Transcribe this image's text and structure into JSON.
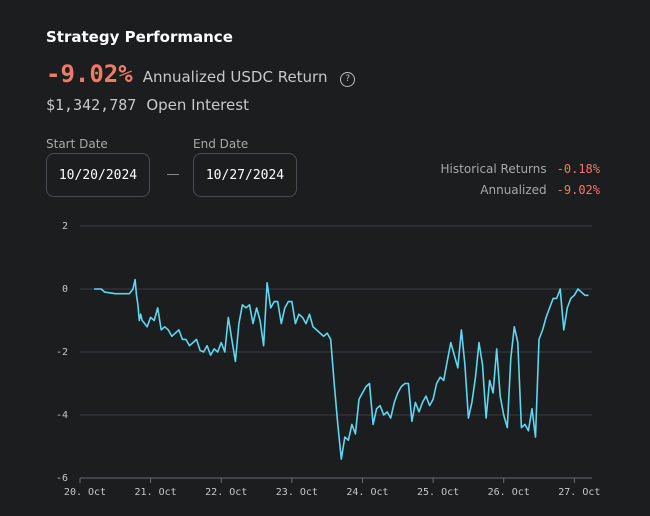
{
  "header": {
    "title": "Strategy Performance",
    "annualized_return": "-9.02%",
    "annualized_return_label": "Annualized USDC Return",
    "help_glyph": "?",
    "open_interest": "$1,342,787",
    "open_interest_label": "Open Interest"
  },
  "date_range": {
    "start_label": "Start Date",
    "start_value": "10/20/2024",
    "end_label": "End Date",
    "end_value": "10/27/2024"
  },
  "summary": {
    "historical_label": "Historical Returns",
    "historical_value": "-0.18%",
    "annualized_label": "Annualized",
    "annualized_value": "-9.02%"
  },
  "colors": {
    "line": "#5fd6f2",
    "negative": "#f07a69",
    "grid": "#3a3d40"
  },
  "chart_data": {
    "type": "line",
    "title": "",
    "xlabel": "",
    "ylabel": "",
    "ylim": [
      -6,
      2
    ],
    "xlim": [
      0,
      7.25
    ],
    "yticks": [
      2,
      0,
      -2,
      -4,
      -6
    ],
    "xticks": [
      {
        "x": 0,
        "label": "20. Oct"
      },
      {
        "x": 1,
        "label": "21. Oct"
      },
      {
        "x": 2,
        "label": "22. Oct"
      },
      {
        "x": 3,
        "label": "23. Oct"
      },
      {
        "x": 4,
        "label": "24. Oct"
      },
      {
        "x": 5,
        "label": "25. Oct"
      },
      {
        "x": 6,
        "label": "26. Oct"
      },
      {
        "x": 7,
        "label": "27. Oct"
      }
    ],
    "grid": true,
    "series": [
      {
        "x": [
          0.2,
          0.3,
          0.35,
          0.5,
          0.6,
          0.7,
          0.75,
          0.78,
          0.8,
          0.82,
          0.84,
          0.86,
          0.88,
          0.9,
          0.95,
          1.0,
          1.05,
          1.1,
          1.15,
          1.2,
          1.25,
          1.3,
          1.35,
          1.4,
          1.45,
          1.5,
          1.55,
          1.6,
          1.65,
          1.7,
          1.75,
          1.8,
          1.85,
          1.9,
          1.95,
          2.0,
          2.05,
          2.1,
          2.15,
          2.2,
          2.25,
          2.3,
          2.35,
          2.4,
          2.45,
          2.5,
          2.55,
          2.6,
          2.65,
          2.7,
          2.75,
          2.8,
          2.85,
          2.9,
          2.95,
          3.0,
          3.05,
          3.1,
          3.15,
          3.2,
          3.25,
          3.3,
          3.35,
          3.4,
          3.45,
          3.5,
          3.55,
          3.6,
          3.65,
          3.7,
          3.75,
          3.8,
          3.85,
          3.9,
          3.95,
          4.0,
          4.05,
          4.1,
          4.15,
          4.2,
          4.25,
          4.3,
          4.35,
          4.4,
          4.45,
          4.5,
          4.55,
          4.6,
          4.65,
          4.7,
          4.75,
          4.8,
          4.85,
          4.9,
          4.95,
          5.0,
          5.05,
          5.1,
          5.15,
          5.2,
          5.25,
          5.3,
          5.35,
          5.4,
          5.45,
          5.5,
          5.55,
          5.6,
          5.65,
          5.7,
          5.75,
          5.8,
          5.85,
          5.9,
          5.95,
          6.0,
          6.05,
          6.1,
          6.15,
          6.2,
          6.25,
          6.3,
          6.35,
          6.4,
          6.45,
          6.5,
          6.55,
          6.6,
          6.65,
          6.7,
          6.75,
          6.8,
          6.85,
          6.9,
          6.95,
          7.0,
          7.05,
          7.1,
          7.15,
          7.2
        ],
        "y": [
          0.0,
          0.0,
          -0.1,
          -0.15,
          -0.15,
          -0.15,
          0.0,
          0.3,
          -0.2,
          -0.5,
          -1.0,
          -0.8,
          -1.0,
          -1.05,
          -1.2,
          -0.9,
          -1.0,
          -0.6,
          -1.3,
          -1.2,
          -1.3,
          -1.5,
          -1.4,
          -1.3,
          -1.6,
          -1.6,
          -1.8,
          -1.7,
          -1.6,
          -1.95,
          -2.0,
          -1.8,
          -2.1,
          -1.9,
          -2.0,
          -1.7,
          -2.0,
          -0.9,
          -1.6,
          -2.3,
          -1.1,
          -0.5,
          -0.6,
          -0.5,
          -1.1,
          -0.6,
          -1.0,
          -1.8,
          0.2,
          -0.6,
          -0.4,
          -0.4,
          -1.1,
          -0.6,
          -0.4,
          -0.4,
          -1.1,
          -0.8,
          -0.9,
          -1.1,
          -0.8,
          -1.2,
          -1.3,
          -1.4,
          -1.5,
          -1.4,
          -1.6,
          -3.0,
          -4.3,
          -5.4,
          -4.7,
          -4.8,
          -4.3,
          -4.6,
          -3.5,
          -3.3,
          -3.1,
          -3.0,
          -4.3,
          -3.8,
          -3.7,
          -4.0,
          -3.9,
          -4.1,
          -3.6,
          -3.3,
          -3.1,
          -3.0,
          -3.0,
          -4.2,
          -3.6,
          -3.9,
          -3.6,
          -3.4,
          -3.7,
          -3.5,
          -3.0,
          -2.8,
          -2.9,
          -2.3,
          -1.7,
          -2.1,
          -2.5,
          -1.3,
          -2.4,
          -4.1,
          -3.6,
          -2.8,
          -1.7,
          -2.4,
          -4.1,
          -2.9,
          -3.3,
          -1.9,
          -3.4,
          -4.0,
          -4.4,
          -2.2,
          -1.2,
          -1.7,
          -4.4,
          -4.3,
          -4.5,
          -3.8,
          -4.7,
          -1.6,
          -1.3,
          -0.9,
          -0.6,
          -0.3,
          -0.3,
          0.0,
          -1.3,
          -0.6,
          -0.3,
          -0.2,
          0.0,
          -0.1,
          -0.2,
          -0.2
        ]
      }
    ]
  }
}
